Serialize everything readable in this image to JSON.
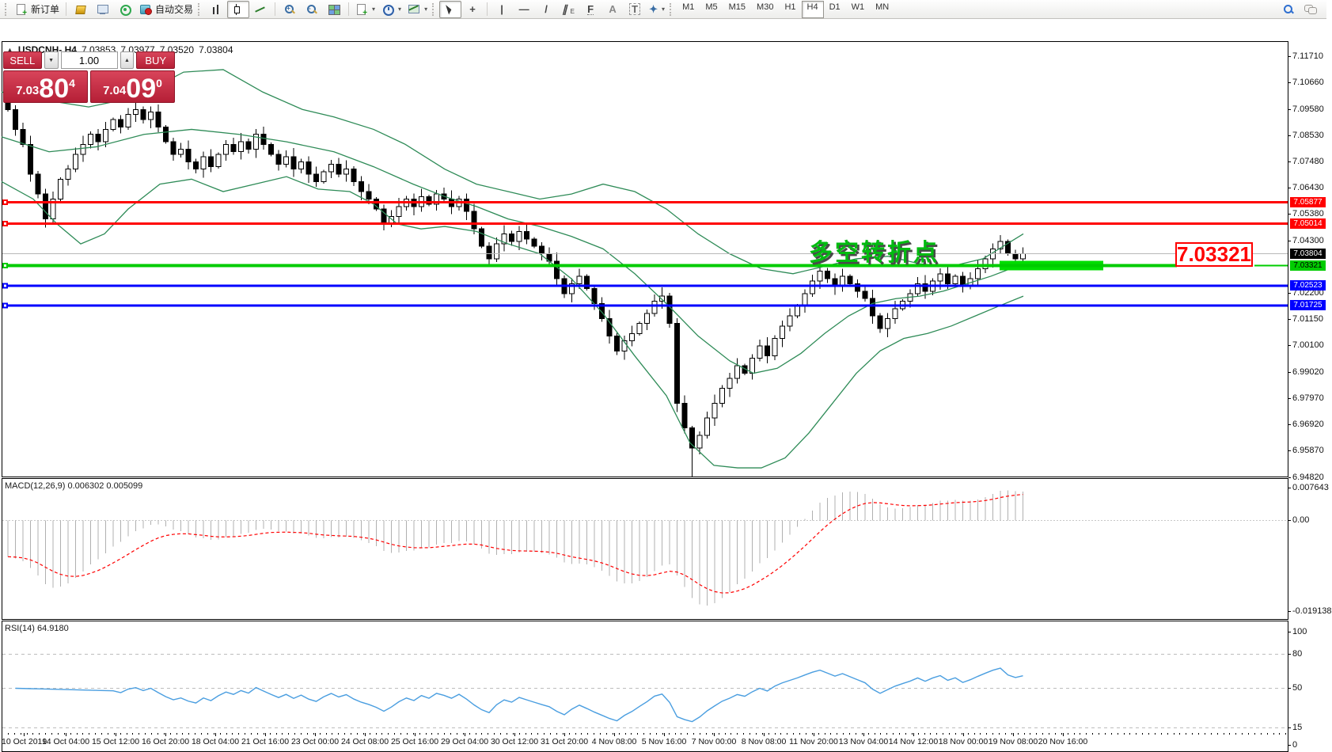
{
  "toolbar": {
    "new_order_label": "新订单",
    "autotrading_label": "自动交易",
    "timeframes": [
      "M1",
      "M5",
      "M15",
      "M30",
      "H1",
      "H4",
      "D1",
      "W1",
      "MN"
    ],
    "active_timeframe": "H4",
    "glyphs": {
      "crosshair": "+",
      "vline": "|",
      "hline": "—",
      "trend": "/",
      "channel": "∥",
      "channel_sub": "E",
      "fibo": "F",
      "text": "A",
      "label": "T",
      "dropdown": "▾"
    }
  },
  "header": {
    "collapse_glyph": "▲",
    "symbol_period": "USDCNH-,H4",
    "open": "7.03853",
    "high": "7.03977",
    "low": "7.03520",
    "close": "7.03804"
  },
  "trade_panel": {
    "sell_label": "SELL",
    "buy_label": "BUY",
    "volume": "1.00",
    "sell": {
      "prefix": "7.03",
      "big": "80",
      "sup": "4"
    },
    "buy": {
      "prefix": "7.04",
      "big": "09",
      "sup": "0"
    }
  },
  "annotations": {
    "turning_point_text": "多空转折点",
    "big_price_label": "7.03321"
  },
  "chart_data": {
    "type": "candlestick",
    "symbol": "USDCNH-",
    "timeframe": "H4",
    "ylim": [
      6.9482,
      7.1228
    ],
    "first_bar_x": 8,
    "bar_spacing_px": 9.5,
    "first_open": 7.1,
    "closes": [
      7.096,
      7.088,
      7.082,
      7.07,
      7.062,
      7.052,
      7.06,
      7.068,
      7.072,
      7.078,
      7.082,
      7.086,
      7.083,
      7.088,
      7.092,
      7.089,
      7.094,
      7.096,
      7.092,
      7.095,
      7.089,
      7.083,
      7.078,
      7.08,
      7.075,
      7.072,
      7.077,
      7.073,
      7.078,
      7.082,
      7.079,
      7.083,
      7.08,
      7.086,
      7.082,
      7.078,
      7.074,
      7.077,
      7.072,
      7.075,
      7.07,
      7.067,
      7.071,
      7.074,
      7.07,
      7.072,
      7.067,
      7.063,
      7.06,
      7.056,
      7.05,
      7.053,
      7.057,
      7.06,
      7.057,
      7.061,
      7.058,
      7.062,
      7.06,
      7.057,
      7.06,
      7.055,
      7.048,
      7.041,
      7.036,
      7.042,
      7.046,
      7.043,
      7.047,
      7.044,
      7.041,
      7.038,
      7.035,
      7.028,
      7.022,
      7.026,
      7.029,
      7.024,
      7.018,
      7.012,
      7.005,
      6.999,
      7.003,
      7.006,
      7.01,
      7.014,
      7.019,
      7.021,
      7.01,
      6.978,
      6.968,
      6.96,
      6.965,
      6.972,
      6.978,
      6.984,
      6.988,
      6.993,
      6.99,
      6.996,
      7.001,
      6.997,
      7.004,
      7.009,
      7.013,
      7.017,
      7.022,
      7.027,
      7.031,
      7.028,
      7.025,
      7.029,
      7.026,
      7.023,
      7.02,
      7.013,
      7.008,
      7.012,
      7.016,
      7.019,
      7.022,
      7.026,
      7.023,
      7.027,
      7.03,
      7.026,
      7.029,
      7.025,
      7.028,
      7.032,
      7.036,
      7.04,
      7.043,
      7.038,
      7.036,
      7.038
    ],
    "special_wicks": {
      "0": {
        "high": 7.1035
      },
      "91": {
        "low": 6.9485
      },
      "132": {
        "high": 7.0455
      }
    },
    "bollinger": {
      "color": "#2e8b57",
      "upper": [
        [
          0,
          7.103
        ],
        [
          50,
          7.1
        ],
        [
          110,
          7.097
        ],
        [
          170,
          7.101
        ],
        [
          230,
          7.111
        ],
        [
          280,
          7.112
        ],
        [
          330,
          7.103
        ],
        [
          380,
          7.096
        ],
        [
          420,
          7.093
        ],
        [
          470,
          7.088
        ],
        [
          510,
          7.082
        ],
        [
          560,
          7.072
        ],
        [
          600,
          7.066
        ],
        [
          640,
          7.063
        ],
        [
          680,
          7.06
        ],
        [
          720,
          7.062
        ],
        [
          760,
          7.066
        ],
        [
          800,
          7.063
        ],
        [
          840,
          7.056
        ],
        [
          880,
          7.046
        ],
        [
          920,
          7.038
        ],
        [
          960,
          7.032
        ],
        [
          1000,
          7.03
        ],
        [
          1040,
          7.033
        ],
        [
          1080,
          7.036
        ],
        [
          1120,
          7.037
        ],
        [
          1160,
          7.034
        ],
        [
          1200,
          7.033
        ],
        [
          1240,
          7.036
        ],
        [
          1291,
          7.046
        ]
      ],
      "middle": [
        [
          0,
          7.085
        ],
        [
          60,
          7.079
        ],
        [
          120,
          7.081
        ],
        [
          180,
          7.086
        ],
        [
          240,
          7.088
        ],
        [
          300,
          7.086
        ],
        [
          360,
          7.083
        ],
        [
          420,
          7.079
        ],
        [
          470,
          7.073
        ],
        [
          520,
          7.066
        ],
        [
          560,
          7.061
        ],
        [
          600,
          7.057
        ],
        [
          640,
          7.052
        ],
        [
          680,
          7.049
        ],
        [
          720,
          7.045
        ],
        [
          760,
          7.04
        ],
        [
          800,
          7.03
        ],
        [
          840,
          7.018
        ],
        [
          880,
          7.005
        ],
        [
          920,
          6.995
        ],
        [
          950,
          6.99
        ],
        [
          980,
          6.992
        ],
        [
          1010,
          6.998
        ],
        [
          1040,
          7.006
        ],
        [
          1070,
          7.013
        ],
        [
          1100,
          7.018
        ],
        [
          1130,
          7.02
        ],
        [
          1160,
          7.021
        ],
        [
          1190,
          7.023
        ],
        [
          1220,
          7.026
        ],
        [
          1250,
          7.029
        ],
        [
          1291,
          7.034
        ]
      ],
      "lower": [
        [
          0,
          7.067
        ],
        [
          40,
          7.06
        ],
        [
          70,
          7.05
        ],
        [
          100,
          7.042
        ],
        [
          130,
          7.046
        ],
        [
          160,
          7.056
        ],
        [
          200,
          7.066
        ],
        [
          240,
          7.068
        ],
        [
          280,
          7.063
        ],
        [
          320,
          7.066
        ],
        [
          360,
          7.069
        ],
        [
          400,
          7.064
        ],
        [
          440,
          7.063
        ],
        [
          470,
          7.058
        ],
        [
          500,
          7.05
        ],
        [
          530,
          7.048
        ],
        [
          560,
          7.049
        ],
        [
          600,
          7.047
        ],
        [
          640,
          7.042
        ],
        [
          680,
          7.038
        ],
        [
          720,
          7.028
        ],
        [
          760,
          7.014
        ],
        [
          800,
          6.997
        ],
        [
          840,
          6.981
        ],
        [
          870,
          6.962
        ],
        [
          900,
          6.953
        ],
        [
          930,
          6.952
        ],
        [
          960,
          6.952
        ],
        [
          990,
          6.956
        ],
        [
          1020,
          6.966
        ],
        [
          1050,
          6.978
        ],
        [
          1080,
          6.99
        ],
        [
          1110,
          6.999
        ],
        [
          1140,
          7.004
        ],
        [
          1170,
          7.006
        ],
        [
          1200,
          7.009
        ],
        [
          1230,
          7.013
        ],
        [
          1260,
          7.017
        ],
        [
          1291,
          7.021
        ]
      ]
    },
    "hlines": [
      {
        "label": "7.05877",
        "price": 7.05877,
        "color": "#ff0000",
        "width": 3,
        "badge_fg": "#ffffff"
      },
      {
        "label": "7.05014",
        "price": 7.05014,
        "color": "#ff0000",
        "width": 3,
        "badge_fg": "#ffffff"
      },
      {
        "label": "7.03321",
        "price": 7.03321,
        "color": "#00cc00",
        "width": 4,
        "badge_fg": "#000000",
        "gap": [
          1485,
          1583
        ]
      },
      {
        "label": "7.02523",
        "price": 7.02523,
        "color": "#0000ff",
        "width": 3,
        "badge_fg": "#ffffff"
      },
      {
        "label": "7.01725",
        "price": 7.01725,
        "color": "#0000ff",
        "width": 3,
        "badge_fg": "#ffffff"
      }
    ],
    "current_price": {
      "label": "7.03804",
      "price": 7.03804,
      "line_color": "#b8b8b8",
      "badge_bg": "#000000",
      "badge_fg": "#ffffff"
    },
    "highlight_rect": {
      "x1": 1261,
      "x2": 1392,
      "price": 7.03321,
      "height": 12,
      "color": "#00dd00"
    },
    "yticks": [
      "7.11710",
      "7.10660",
      "7.09580",
      "7.08530",
      "7.07480",
      "7.06430",
      "7.05380",
      "7.04300",
      "7.02200",
      "7.01150",
      "7.00100",
      "6.99020",
      "6.97970",
      "6.96920",
      "6.95870",
      "6.94820"
    ],
    "time_labels": [
      "10 Oct 2019",
      "14 Oct 04:00",
      "15 Oct 12:00",
      "16 Oct 20:00",
      "18 Oct 04:00",
      "21 Oct 16:00",
      "23 Oct 00:00",
      "24 Oct 08:00",
      "25 Oct 16:00",
      "29 Oct 04:00",
      "30 Oct 12:00",
      "31 Oct 20:00",
      "4 Nov 08:00",
      "5 Nov 16:00",
      "7 Nov 00:00",
      "8 Nov 08:00",
      "11 Nov 20:00",
      "13 Nov 04:00",
      "14 Nov 12:00",
      "18 Nov 00:00",
      "19 Nov 08:00",
      "20 Nov 16:00"
    ],
    "macd": {
      "label": "MACD(12,26,9) 0.006302 0.005099",
      "axis_labels": [
        "0.007643",
        "0.00",
        "-0.019138"
      ],
      "histogram_color": "#b0b0b0",
      "signal_color": "#ff0000"
    },
    "rsi": {
      "label": "RSI(14) 64.9180",
      "axis_labels": [
        "100",
        "80",
        "50",
        "15",
        "0"
      ],
      "levels": [
        80,
        50,
        15
      ],
      "line_color": "#4a9ee0"
    }
  }
}
